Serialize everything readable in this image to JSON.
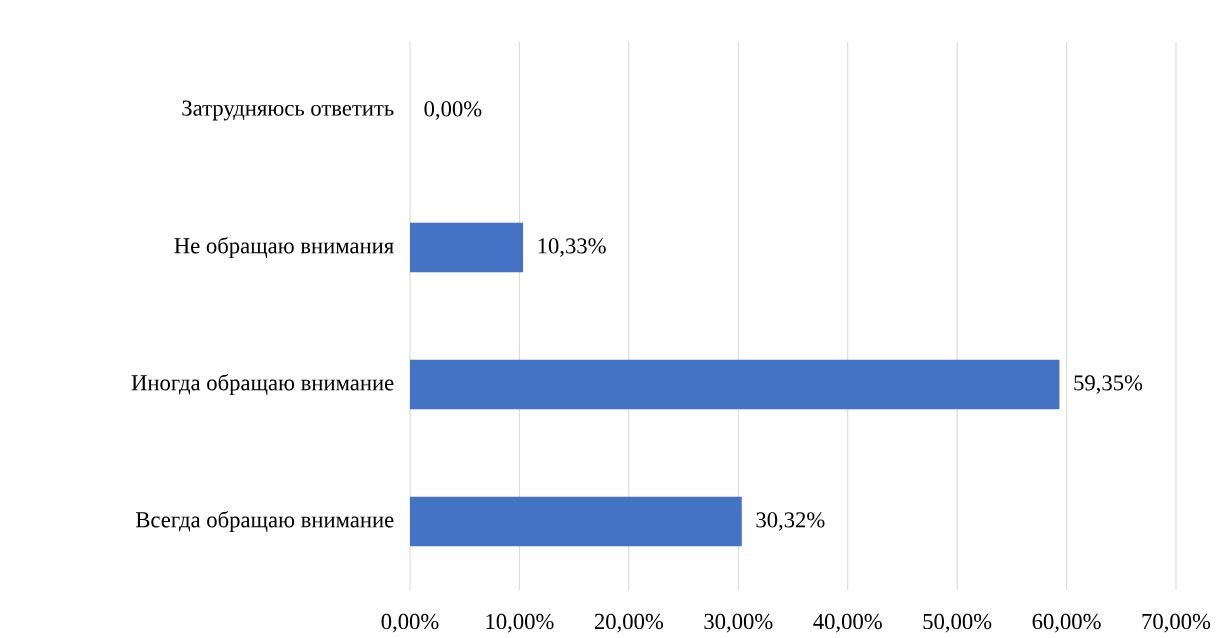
{
  "chart_data": {
    "type": "bar",
    "orientation": "horizontal",
    "categories": [
      "Затрудняюсь ответить",
      "Не обращаю внимания",
      "Иногда обращаю внимание",
      "Всегда обращаю внимание"
    ],
    "values": [
      0,
      10.33,
      59.35,
      30.32
    ],
    "value_labels": [
      "0,00%",
      "10,33%",
      "59,35%",
      "30,32%"
    ],
    "color": "#4472c4",
    "xlim": [
      0,
      70
    ],
    "xticks": [
      {
        "value": 0,
        "label": "0,00%"
      },
      {
        "value": 10,
        "label": "10,00%"
      },
      {
        "value": 20,
        "label": "20,00%"
      },
      {
        "value": 30,
        "label": "30,00%"
      },
      {
        "value": 40,
        "label": "40,00%"
      },
      {
        "value": 50,
        "label": "50,00%"
      },
      {
        "value": 60,
        "label": "60,00%"
      },
      {
        "value": 70,
        "label": "70,00%"
      }
    ],
    "grid": "x"
  }
}
